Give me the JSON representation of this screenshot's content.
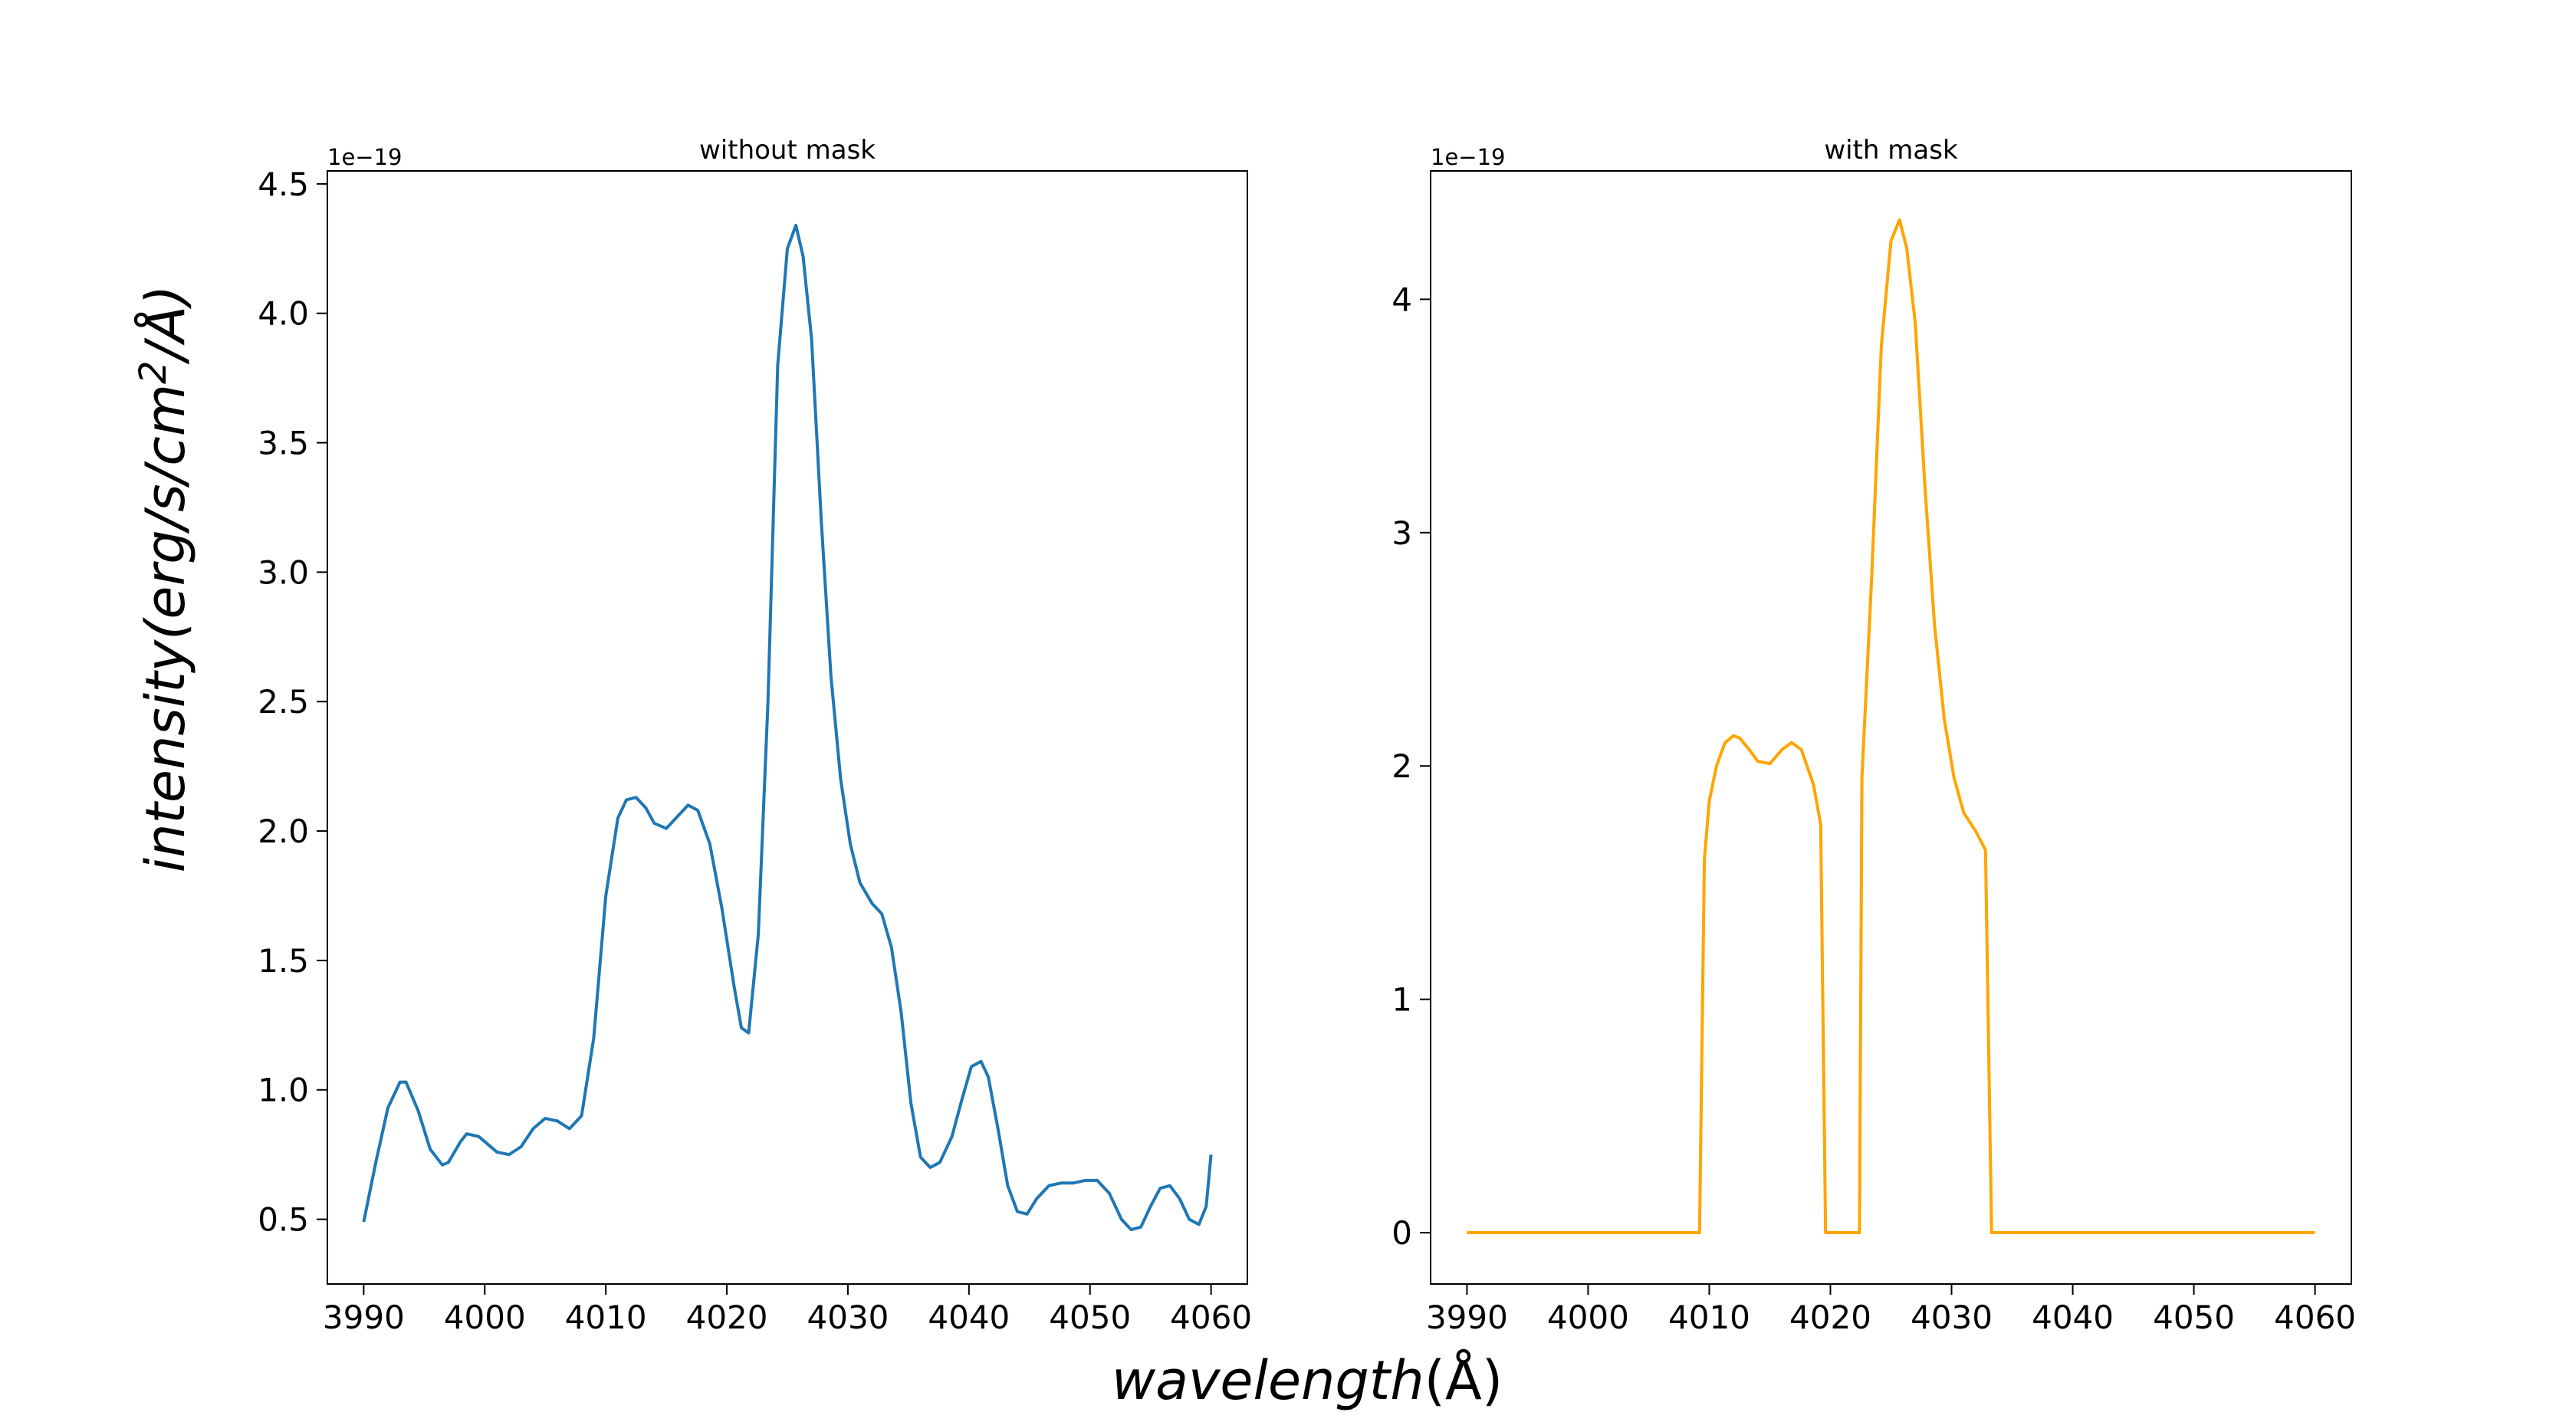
{
  "figure": {
    "xlabel_var": "wavelength",
    "xlabel_unit": "(Å)",
    "ylabel_pre": "intensity(erg/s/cm",
    "ylabel_sup": "2",
    "ylabel_post": "/Å)"
  },
  "chart_data": [
    {
      "type": "line",
      "title": "without mask",
      "offset_text": "1e−19",
      "color": "#1f77b4",
      "xlim": [
        3987,
        4063
      ],
      "ylim": [
        0.25,
        4.55
      ],
      "xticks": [
        3990,
        4000,
        4010,
        4020,
        4030,
        4040,
        4050,
        4060
      ],
      "xtick_labels": [
        "3990",
        "4000",
        "4010",
        "4020",
        "4030",
        "4040",
        "4050",
        "4060"
      ],
      "yticks": [
        0.5,
        1.0,
        1.5,
        2.0,
        2.5,
        3.0,
        3.5,
        4.0,
        4.5
      ],
      "ytick_labels": [
        "0.5",
        "1.0",
        "1.5",
        "2.0",
        "2.5",
        "3.0",
        "3.5",
        "4.0",
        "4.5"
      ],
      "x": [
        3990,
        3991,
        3992,
        3993,
        3993.5,
        3994.5,
        3995.5,
        3996.5,
        3997,
        3998,
        3998.5,
        3999.5,
        4001,
        4002,
        4003,
        4004,
        4005,
        4006,
        4007,
        4008,
        4009,
        4010,
        4011,
        4011.7,
        4012.5,
        4013.3,
        4014,
        4015,
        4016,
        4016.8,
        4017.6,
        4018.6,
        4019.6,
        4020.6,
        4021.2,
        4021.8,
        4022.6,
        4023.4,
        4024.2,
        4025,
        4025.7,
        4026.3,
        4027,
        4027.8,
        4028.6,
        4029.4,
        4030.2,
        4031,
        4032,
        4032.8,
        4033.6,
        4034.4,
        4035.2,
        4036,
        4036.8,
        4037.6,
        4038.6,
        4039.4,
        4040.2,
        4041,
        4041.6,
        4042.4,
        4043.2,
        4044,
        4044.8,
        4045.6,
        4046.6,
        4047.6,
        4048.6,
        4049.6,
        4050.6,
        4051.6,
        4052.6,
        4053.4,
        4054.2,
        4055,
        4055.8,
        4056.6,
        4057.4,
        4058.2,
        4059,
        4059.6,
        4060
      ],
      "y": [
        0.49,
        0.72,
        0.93,
        1.03,
        1.03,
        0.92,
        0.77,
        0.71,
        0.72,
        0.8,
        0.83,
        0.82,
        0.76,
        0.75,
        0.78,
        0.85,
        0.89,
        0.88,
        0.85,
        0.9,
        1.2,
        1.75,
        2.05,
        2.12,
        2.13,
        2.09,
        2.03,
        2.01,
        2.06,
        2.1,
        2.08,
        1.95,
        1.7,
        1.4,
        1.24,
        1.22,
        1.6,
        2.5,
        3.8,
        4.25,
        4.34,
        4.22,
        3.9,
        3.2,
        2.6,
        2.2,
        1.95,
        1.8,
        1.72,
        1.68,
        1.55,
        1.3,
        0.95,
        0.74,
        0.7,
        0.72,
        0.82,
        0.96,
        1.09,
        1.11,
        1.05,
        0.85,
        0.63,
        0.53,
        0.52,
        0.58,
        0.63,
        0.64,
        0.64,
        0.65,
        0.65,
        0.6,
        0.5,
        0.46,
        0.47,
        0.55,
        0.62,
        0.63,
        0.58,
        0.5,
        0.48,
        0.55,
        0.75
      ]
    },
    {
      "type": "line",
      "title": "with mask",
      "offset_text": "1e−19",
      "color": "#ffa500",
      "xlim": [
        3987,
        4063
      ],
      "ylim": [
        -0.22,
        4.55
      ],
      "xticks": [
        3990,
        4000,
        4010,
        4020,
        4030,
        4040,
        4050,
        4060
      ],
      "xtick_labels": [
        "3990",
        "4000",
        "4010",
        "4020",
        "4030",
        "4040",
        "4050",
        "4060"
      ],
      "yticks": [
        0,
        1,
        2,
        3,
        4
      ],
      "ytick_labels": [
        "0",
        "1",
        "2",
        "3",
        "4"
      ],
      "x": [
        3990,
        4009.2,
        4009.6,
        4010,
        4010.6,
        4011.3,
        4012,
        4012.5,
        4013.3,
        4014,
        4015,
        4016,
        4016.8,
        4017.6,
        4018.6,
        4019.2,
        4019.6,
        4022.4,
        4022.6,
        4023.4,
        4024.2,
        4025,
        4025.7,
        4026.3,
        4027,
        4027.8,
        4028.6,
        4029.4,
        4030.2,
        4031,
        4032,
        4032.8,
        4033.3,
        4060
      ],
      "y": [
        0,
        0,
        1.6,
        1.85,
        2.0,
        2.1,
        2.13,
        2.12,
        2.07,
        2.02,
        2.01,
        2.07,
        2.1,
        2.07,
        1.92,
        1.75,
        0,
        0,
        1.95,
        2.8,
        3.8,
        4.25,
        4.34,
        4.22,
        3.9,
        3.2,
        2.6,
        2.2,
        1.95,
        1.8,
        1.72,
        1.64,
        0,
        0
      ]
    }
  ]
}
